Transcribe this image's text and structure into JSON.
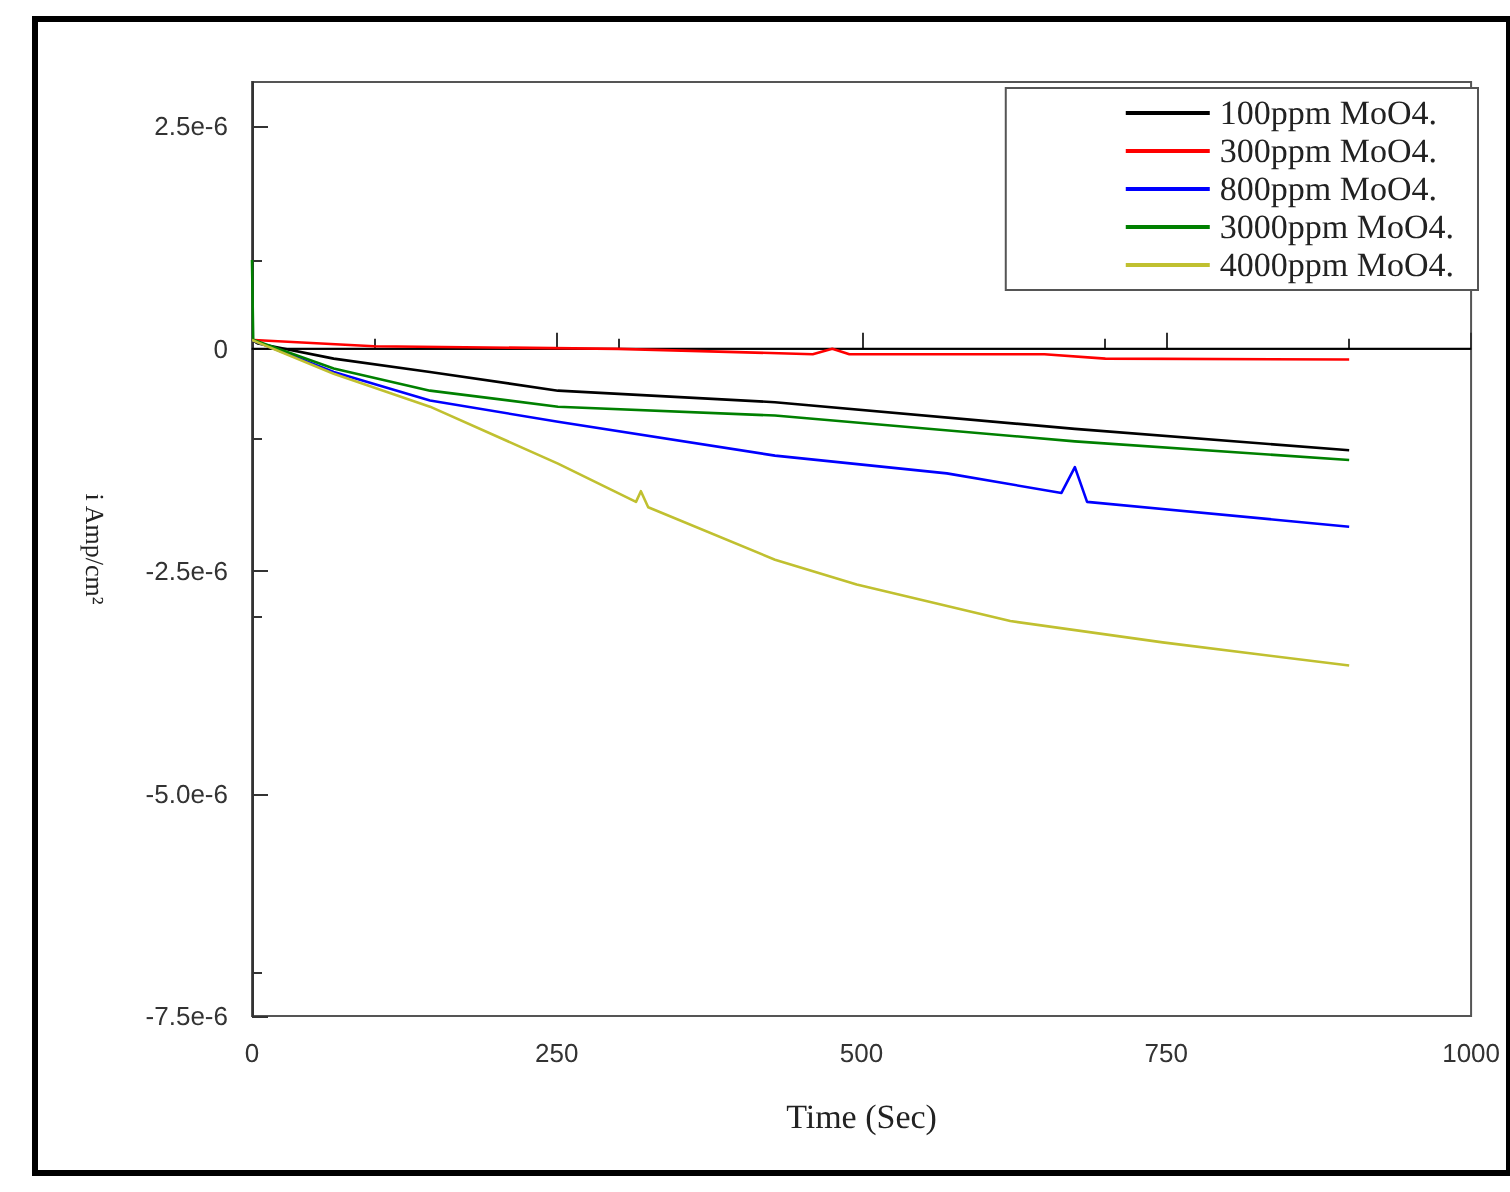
{
  "chart_data": {
    "type": "line",
    "xlabel": "Time (Sec)",
    "ylabel": "i Amp/cm²",
    "xlim": [
      0,
      1000
    ],
    "xticks": [
      0,
      250,
      500,
      750,
      1000
    ],
    "ylim": [
      -7.5e-06,
      3e-06
    ],
    "yticks": [
      {
        "value": 2.5e-06,
        "label": "2.5e-6"
      },
      0,
      {
        "value": -2.5e-06,
        "label": "-2.5e-6"
      },
      {
        "value": -5e-06,
        "label": "-5.0e-6"
      },
      {
        "value": -7.5e-06,
        "label": "-7.5e-6"
      }
    ],
    "grid": false,
    "legend": "top right",
    "marker": "none",
    "line_style": "solid",
    "ref_lines": [
      {
        "axis": "y",
        "value": 0,
        "color": "#000000"
      }
    ],
    "series": [
      {
        "name": "100ppm MoO4.",
        "color": "#000000",
        "x": [
          0,
          5,
          67,
          146,
          251,
          429,
          675,
          900
        ],
        "values": [
          1e-07,
          6e-08,
          -1.1e-07,
          -2.6e-07,
          -4.7e-07,
          -6e-07,
          -9e-07,
          -1.14e-06
        ]
      },
      {
        "name": "300ppm MoO4.",
        "color": "#ff0000",
        "x": [
          0,
          100,
          300,
          460,
          476,
          490,
          650,
          700,
          900
        ],
        "values": [
          1e-07,
          3e-08,
          0,
          -6e-08,
          0,
          -6e-08,
          -6e-08,
          -1.1e-07,
          -1.2e-07
        ]
      },
      {
        "name": "800ppm MoO4.",
        "color": "#0000ff",
        "x": [
          0,
          67,
          146,
          251,
          429,
          570,
          664,
          675,
          685,
          900
        ],
        "values": [
          1e-07,
          -2.6e-07,
          -5.8e-07,
          -8.2e-07,
          -1.2e-06,
          -1.4e-06,
          -1.62e-06,
          -1.33e-06,
          -1.72e-06,
          -2e-06
        ]
      },
      {
        "name": "3000ppm MoO4.",
        "color": "#008000",
        "x": [
          0,
          1,
          67,
          146,
          251,
          429,
          675,
          900
        ],
        "values": [
          1e-06,
          1e-07,
          -2.2e-07,
          -4.7e-07,
          -6.5e-07,
          -7.5e-07,
          -1.04e-06,
          -1.25e-06
        ]
      },
      {
        "name": "4000ppm MoO4.",
        "color": "#c0c030",
        "x": [
          0,
          67,
          146,
          251,
          315,
          319,
          325,
          429,
          496,
          622,
          747,
          900
        ],
        "values": [
          1e-07,
          -2.8e-07,
          -6.5e-07,
          -1.29e-06,
          -1.72e-06,
          -1.6e-06,
          -1.78e-06,
          -2.37e-06,
          -2.65e-06,
          -3.06e-06,
          -3.3e-06,
          -3.56e-06
        ]
      }
    ]
  }
}
